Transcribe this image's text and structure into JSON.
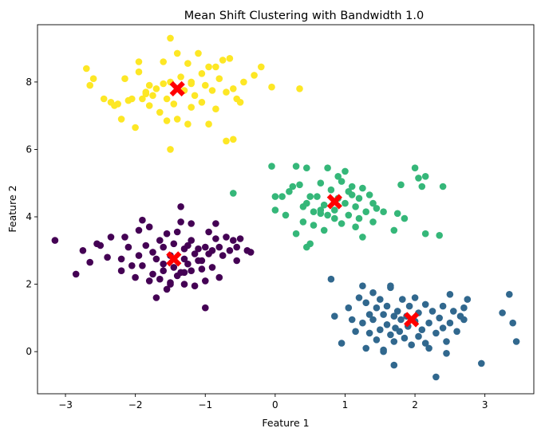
{
  "chart_data": {
    "type": "scatter",
    "title": "Mean Shift Clustering with Bandwidth 1.0",
    "xlabel": "Feature 1",
    "ylabel": "Feature 2",
    "xlim": [
      -3.4,
      3.7
    ],
    "ylim": [
      -1.25,
      9.7
    ],
    "xticks": [
      -3,
      -2,
      -1,
      0,
      1,
      2,
      3
    ],
    "yticks": [
      0,
      2,
      4,
      6,
      8
    ],
    "grid": false,
    "legend": "none",
    "colors": {
      "cluster_0": "#440154",
      "cluster_1": "#31688e",
      "cluster_2": "#35b779",
      "cluster_3": "#fde725",
      "center": "#ff0000",
      "axes": "#000000"
    },
    "series": [
      {
        "color_key": "cluster_0",
        "points": [
          [
            -3.15,
            3.3
          ],
          [
            -2.85,
            2.3
          ],
          [
            -2.75,
            3.0
          ],
          [
            -2.65,
            2.65
          ],
          [
            -2.55,
            3.2
          ],
          [
            -2.5,
            3.15
          ],
          [
            -2.4,
            2.8
          ],
          [
            -2.35,
            3.4
          ],
          [
            -2.2,
            2.75
          ],
          [
            -2.2,
            2.4
          ],
          [
            -2.15,
            3.4
          ],
          [
            -2.1,
            3.1
          ],
          [
            -2.05,
            2.55
          ],
          [
            -2.0,
            2.2
          ],
          [
            -1.95,
            2.85
          ],
          [
            -1.95,
            3.6
          ],
          [
            -1.9,
            3.9
          ],
          [
            -1.9,
            2.55
          ],
          [
            -1.85,
            3.15
          ],
          [
            -1.8,
            2.1
          ],
          [
            -1.8,
            3.7
          ],
          [
            -1.75,
            2.95
          ],
          [
            -1.75,
            2.3
          ],
          [
            -1.7,
            2.75
          ],
          [
            -1.7,
            1.6
          ],
          [
            -1.65,
            3.3
          ],
          [
            -1.65,
            2.15
          ],
          [
            -1.6,
            2.6
          ],
          [
            -1.6,
            3.1
          ],
          [
            -1.55,
            1.85
          ],
          [
            -1.55,
            3.5
          ],
          [
            -1.5,
            2.85
          ],
          [
            -1.5,
            2.0
          ],
          [
            -1.45,
            3.2
          ],
          [
            -1.45,
            2.5
          ],
          [
            -1.4,
            3.55
          ],
          [
            -1.4,
            2.25
          ],
          [
            -1.35,
            4.3
          ],
          [
            -1.35,
            3.85
          ],
          [
            -1.3,
            2.75
          ],
          [
            -1.3,
            3.05
          ],
          [
            -1.3,
            2.0
          ],
          [
            -1.25,
            3.15
          ],
          [
            -1.25,
            2.6
          ],
          [
            -1.2,
            3.3
          ],
          [
            -1.2,
            2.4
          ],
          [
            -1.15,
            2.9
          ],
          [
            -1.15,
            1.95
          ],
          [
            -1.1,
            3.05
          ],
          [
            -1.1,
            2.7
          ],
          [
            -1.05,
            2.45
          ],
          [
            -1.0,
            3.1
          ],
          [
            -1.0,
            2.1
          ],
          [
            -0.95,
            3.55
          ],
          [
            -0.95,
            2.9
          ],
          [
            -0.9,
            3.0
          ],
          [
            -0.9,
            2.5
          ],
          [
            -0.85,
            3.8
          ],
          [
            -0.85,
            3.35
          ],
          [
            -0.8,
            3.1
          ],
          [
            -0.8,
            2.2
          ],
          [
            -0.75,
            2.85
          ],
          [
            -0.7,
            3.4
          ],
          [
            -0.65,
            3.0
          ],
          [
            -0.6,
            3.3
          ],
          [
            -0.55,
            2.7
          ],
          [
            -0.5,
            3.35
          ],
          [
            -0.55,
            3.1
          ],
          [
            -0.4,
            3.0
          ],
          [
            -1.3,
            2.35
          ],
          [
            -1.2,
            3.8
          ],
          [
            -1.0,
            1.3
          ],
          [
            -1.5,
            2.05
          ],
          [
            -1.6,
            2.4
          ],
          [
            -1.35,
            2.35
          ],
          [
            -1.05,
            2.7
          ],
          [
            -0.35,
            2.95
          ]
        ]
      },
      {
        "color_key": "cluster_1",
        "points": [
          [
            0.8,
            2.15
          ],
          [
            0.85,
            1.05
          ],
          [
            0.95,
            0.25
          ],
          [
            1.05,
            1.3
          ],
          [
            1.1,
            0.95
          ],
          [
            1.15,
            0.6
          ],
          [
            1.2,
            1.6
          ],
          [
            1.25,
            0.85
          ],
          [
            1.25,
            1.95
          ],
          [
            1.3,
            1.45
          ],
          [
            1.3,
            0.1
          ],
          [
            1.35,
            0.55
          ],
          [
            1.35,
            1.1
          ],
          [
            1.4,
            0.95
          ],
          [
            1.4,
            1.75
          ],
          [
            1.45,
            1.3
          ],
          [
            1.45,
            0.35
          ],
          [
            1.5,
            0.65
          ],
          [
            1.5,
            1.55
          ],
          [
            1.55,
            1.1
          ],
          [
            1.55,
            0.0
          ],
          [
            1.6,
            0.8
          ],
          [
            1.6,
            1.35
          ],
          [
            1.65,
            0.5
          ],
          [
            1.65,
            1.9
          ],
          [
            1.7,
            1.05
          ],
          [
            1.7,
            0.3
          ],
          [
            1.72,
            0.7
          ],
          [
            1.75,
            1.2
          ],
          [
            1.78,
            0.6
          ],
          [
            1.8,
            0.95
          ],
          [
            1.82,
            1.55
          ],
          [
            1.85,
            0.4
          ],
          [
            1.88,
            1.05
          ],
          [
            1.9,
            0.75
          ],
          [
            1.92,
            1.35
          ],
          [
            1.95,
            0.2
          ],
          [
            2.0,
            0.9
          ],
          [
            2.0,
            1.6
          ],
          [
            2.05,
            0.45
          ],
          [
            2.05,
            1.15
          ],
          [
            2.1,
            0.65
          ],
          [
            2.15,
            1.4
          ],
          [
            2.2,
            0.1
          ],
          [
            2.2,
            0.85
          ],
          [
            2.25,
            1.2
          ],
          [
            2.3,
            0.55
          ],
          [
            2.3,
            -0.75
          ],
          [
            2.35,
            1.0
          ],
          [
            2.4,
            0.7
          ],
          [
            2.4,
            1.35
          ],
          [
            2.45,
            0.3
          ],
          [
            2.5,
            0.85
          ],
          [
            2.5,
            1.7
          ],
          [
            2.55,
            1.2
          ],
          [
            2.6,
            0.6
          ],
          [
            2.65,
            1.05
          ],
          [
            2.7,
            0.95
          ],
          [
            2.75,
            1.55
          ],
          [
            2.95,
            -0.35
          ],
          [
            3.25,
            1.15
          ],
          [
            3.35,
            1.7
          ],
          [
            3.4,
            0.85
          ],
          [
            3.45,
            0.3
          ],
          [
            1.55,
            0.05
          ],
          [
            1.7,
            -0.4
          ],
          [
            2.15,
            0.25
          ],
          [
            2.45,
            -0.05
          ],
          [
            1.65,
            1.95
          ],
          [
            2.7,
            1.3
          ]
        ]
      },
      {
        "color_key": "cluster_2",
        "points": [
          [
            -0.6,
            4.7
          ],
          [
            -0.05,
            5.5
          ],
          [
            0.0,
            4.6
          ],
          [
            0.0,
            4.2
          ],
          [
            0.1,
            4.6
          ],
          [
            0.15,
            4.05
          ],
          [
            0.2,
            4.75
          ],
          [
            0.25,
            4.9
          ],
          [
            0.3,
            5.5
          ],
          [
            0.3,
            3.5
          ],
          [
            0.35,
            4.95
          ],
          [
            0.4,
            4.3
          ],
          [
            0.4,
            3.85
          ],
          [
            0.45,
            5.45
          ],
          [
            0.45,
            4.4
          ],
          [
            0.5,
            4.6
          ],
          [
            0.5,
            3.2
          ],
          [
            0.55,
            4.15
          ],
          [
            0.55,
            3.75
          ],
          [
            0.6,
            4.6
          ],
          [
            0.65,
            5.0
          ],
          [
            0.65,
            4.1
          ],
          [
            0.7,
            4.35
          ],
          [
            0.7,
            3.6
          ],
          [
            0.75,
            5.45
          ],
          [
            0.75,
            4.05
          ],
          [
            0.8,
            4.8
          ],
          [
            0.85,
            4.2
          ],
          [
            0.85,
            3.95
          ],
          [
            0.9,
            4.55
          ],
          [
            0.95,
            5.05
          ],
          [
            0.95,
            3.8
          ],
          [
            1.0,
            5.35
          ],
          [
            1.0,
            4.4
          ],
          [
            1.05,
            4.75
          ],
          [
            1.05,
            4.05
          ],
          [
            1.1,
            4.9
          ],
          [
            1.15,
            4.3
          ],
          [
            1.15,
            3.7
          ],
          [
            1.2,
            4.55
          ],
          [
            1.2,
            3.95
          ],
          [
            1.25,
            3.4
          ],
          [
            1.3,
            4.15
          ],
          [
            1.35,
            4.65
          ],
          [
            1.4,
            4.4
          ],
          [
            1.4,
            3.85
          ],
          [
            1.45,
            4.25
          ],
          [
            1.55,
            4.15
          ],
          [
            1.7,
            3.6
          ],
          [
            1.75,
            4.1
          ],
          [
            1.8,
            4.95
          ],
          [
            1.85,
            3.95
          ],
          [
            2.0,
            5.45
          ],
          [
            2.05,
            5.15
          ],
          [
            2.1,
            4.9
          ],
          [
            2.15,
            3.5
          ],
          [
            2.15,
            5.2
          ],
          [
            2.35,
            3.45
          ],
          [
            2.4,
            4.9
          ],
          [
            0.45,
            3.1
          ],
          [
            0.65,
            4.2
          ],
          [
            1.1,
            4.65
          ],
          [
            1.25,
            4.85
          ],
          [
            0.9,
            5.2
          ]
        ]
      },
      {
        "color_key": "cluster_3",
        "points": [
          [
            -2.7,
            8.4
          ],
          [
            -2.65,
            7.9
          ],
          [
            -2.6,
            8.1
          ],
          [
            -2.45,
            7.5
          ],
          [
            -2.35,
            7.4
          ],
          [
            -2.25,
            7.35
          ],
          [
            -2.15,
            8.1
          ],
          [
            -2.2,
            6.9
          ],
          [
            -2.05,
            7.5
          ],
          [
            -2.0,
            6.65
          ],
          [
            -1.95,
            8.6
          ],
          [
            -1.95,
            8.3
          ],
          [
            -1.9,
            7.5
          ],
          [
            -1.85,
            7.7
          ],
          [
            -1.8,
            7.9
          ],
          [
            -1.8,
            7.3
          ],
          [
            -1.75,
            7.6
          ],
          [
            -1.7,
            7.8
          ],
          [
            -1.65,
            7.1
          ],
          [
            -1.6,
            8.6
          ],
          [
            -1.6,
            7.95
          ],
          [
            -1.55,
            7.5
          ],
          [
            -1.5,
            9.3
          ],
          [
            -1.5,
            8.0
          ],
          [
            -1.45,
            7.35
          ],
          [
            -1.4,
            8.85
          ],
          [
            -1.4,
            6.9
          ],
          [
            -1.35,
            8.15
          ],
          [
            -1.3,
            7.75
          ],
          [
            -1.25,
            8.55
          ],
          [
            -1.2,
            7.25
          ],
          [
            -1.2,
            8.0
          ],
          [
            -1.15,
            7.6
          ],
          [
            -1.1,
            8.85
          ],
          [
            -1.05,
            7.4
          ],
          [
            -1.05,
            8.25
          ],
          [
            -1.0,
            7.9
          ],
          [
            -0.95,
            6.75
          ],
          [
            -0.95,
            8.45
          ],
          [
            -0.9,
            7.75
          ],
          [
            -0.85,
            7.2
          ],
          [
            -0.8,
            8.1
          ],
          [
            -0.75,
            8.65
          ],
          [
            -0.7,
            7.7
          ],
          [
            -0.7,
            6.25
          ],
          [
            -0.65,
            8.7
          ],
          [
            -0.6,
            7.8
          ],
          [
            -0.55,
            7.5
          ],
          [
            -0.5,
            7.4
          ],
          [
            -0.45,
            8.0
          ],
          [
            -0.3,
            8.2
          ],
          [
            -0.2,
            8.45
          ],
          [
            -0.05,
            7.85
          ],
          [
            0.35,
            7.8
          ],
          [
            -1.5,
            6.0
          ],
          [
            -1.55,
            6.85
          ],
          [
            -1.25,
            6.75
          ],
          [
            -0.6,
            6.3
          ],
          [
            -2.3,
            7.3
          ],
          [
            -2.1,
            7.45
          ],
          [
            -1.85,
            7.65
          ],
          [
            -1.2,
            7.95
          ],
          [
            -0.85,
            8.45
          ]
        ]
      }
    ],
    "centers": [
      [
        -1.45,
        2.75
      ],
      [
        1.95,
        0.95
      ],
      [
        0.85,
        4.45
      ],
      [
        -1.4,
        7.8
      ]
    ]
  }
}
